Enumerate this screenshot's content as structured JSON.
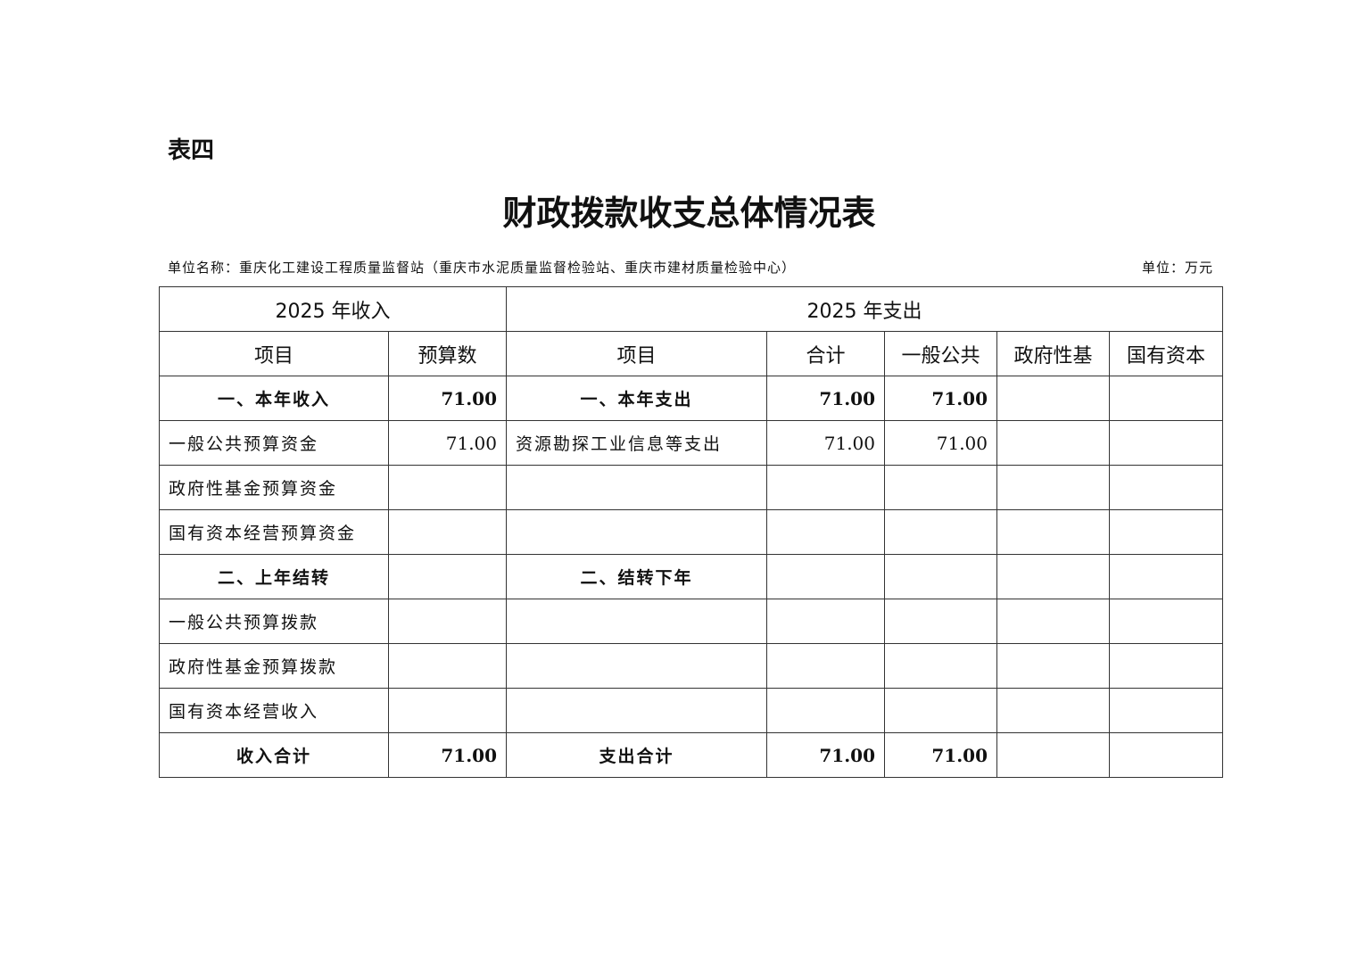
{
  "doc": {
    "label": "表四",
    "title": "财政拨款收支总体情况表",
    "unit_name": "单位名称：重庆化工建设工程质量监督站（重庆市水泥质量监督检验站、重庆市建材质量检验中心）",
    "unit": "单位：万元"
  },
  "table": {
    "income_header": "2025 年收入",
    "expense_header": "2025 年支出",
    "columns": [
      "项目",
      "预算数",
      "项目",
      "合计",
      "一般公共",
      "政府性基",
      "国有资本"
    ],
    "rows": [
      [
        "一、本年收入",
        "71.00",
        "一、本年支出",
        "71.00",
        "71.00",
        "",
        ""
      ],
      [
        "一般公共预算资金",
        "71.00",
        "资源勘探工业信息等支出",
        "71.00",
        "71.00",
        "",
        ""
      ],
      [
        "政府性基金预算资金",
        "",
        "",
        "",
        "",
        "",
        ""
      ],
      [
        "国有资本经营预算资金",
        "",
        "",
        "",
        "",
        "",
        ""
      ],
      [
        "二、上年结转",
        "",
        "二、结转下年",
        "",
        "",
        "",
        ""
      ],
      [
        "一般公共预算拨款",
        "",
        "",
        "",
        "",
        "",
        ""
      ],
      [
        "政府性基金预算拨款",
        "",
        "",
        "",
        "",
        "",
        ""
      ],
      [
        "国有资本经营收入",
        "",
        "",
        "",
        "",
        "",
        ""
      ],
      [
        "收入合计",
        "71.00",
        "支出合计",
        "71.00",
        "71.00",
        "",
        ""
      ]
    ]
  }
}
